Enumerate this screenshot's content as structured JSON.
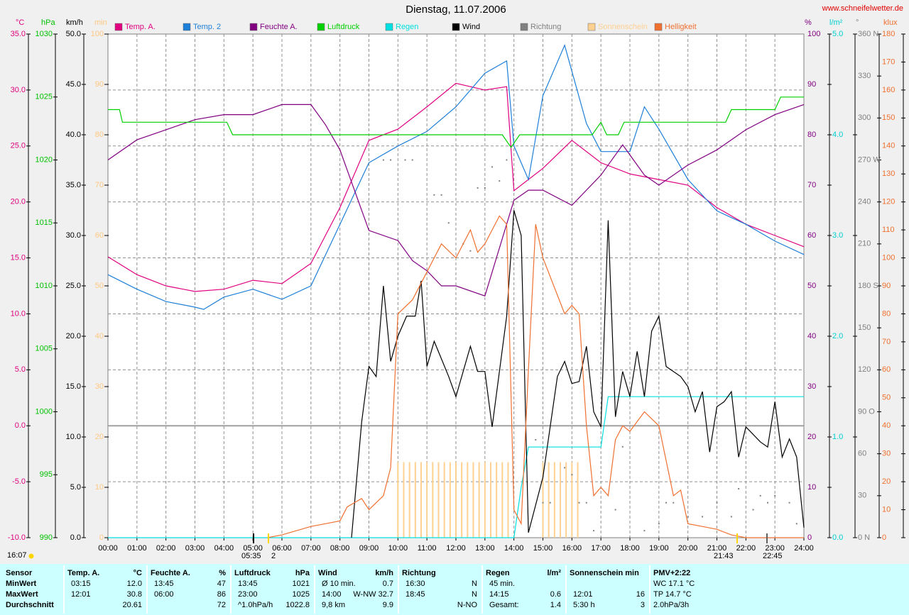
{
  "chart_data": {
    "type": "line",
    "title": "Dienstag, 11.07.2006",
    "source": "www.schneifelwetter.de",
    "xlim": [
      0,
      24
    ],
    "xticks": [
      {
        "value": 0,
        "label": "00:00"
      },
      {
        "value": 1,
        "label": "01:00"
      },
      {
        "value": 2,
        "label": "02:00"
      },
      {
        "value": 3,
        "label": "03:00"
      },
      {
        "value": 4,
        "label": "04:00"
      },
      {
        "value": 5,
        "label": "05:00"
      },
      {
        "value": 6,
        "label": "06:00"
      },
      {
        "value": 7,
        "label": "07:00"
      },
      {
        "value": 8,
        "label": "08:00"
      },
      {
        "value": 9,
        "label": "09:00"
      },
      {
        "value": 10,
        "label": "10:00"
      },
      {
        "value": 11,
        "label": "11:00"
      },
      {
        "value": 12,
        "label": "12:00"
      },
      {
        "value": 13,
        "label": "13:00"
      },
      {
        "value": 14,
        "label": "14:00"
      },
      {
        "value": 15,
        "label": "15:00"
      },
      {
        "value": 16,
        "label": "16:00"
      },
      {
        "value": 17,
        "label": "17:00"
      },
      {
        "value": 18,
        "label": "18:00"
      },
      {
        "value": 19,
        "label": "19:00"
      },
      {
        "value": 20,
        "label": "20:00"
      },
      {
        "value": 21,
        "label": "21:00"
      },
      {
        "value": 22,
        "label": "22:00"
      },
      {
        "value": 23,
        "label": "23:00"
      },
      {
        "value": 24,
        "label": "24:00"
      }
    ],
    "grid": true,
    "grid_axis": "°C",
    "axes": [
      {
        "unit": "°C",
        "side": "left",
        "color": "#e0007f",
        "ylim": [
          -10,
          35
        ],
        "yticks": [
          {
            "value": -10,
            "label": "-10.0"
          },
          {
            "value": -5,
            "label": "-5.0"
          },
          {
            "value": 0,
            "label": "0.0"
          },
          {
            "value": 5,
            "label": "5.0"
          },
          {
            "value": 10,
            "label": "10.0"
          },
          {
            "value": 15,
            "label": "15.0"
          },
          {
            "value": 20,
            "label": "20.0"
          },
          {
            "value": 25,
            "label": "25.0"
          },
          {
            "value": 30,
            "label": "30.0"
          },
          {
            "value": 35,
            "label": "35.0"
          }
        ]
      },
      {
        "unit": "hPa",
        "side": "left",
        "color": "#00c000",
        "ylim": [
          990,
          1030
        ],
        "yticks": [
          990,
          995,
          1000,
          1005,
          1010,
          1015,
          1020,
          1025,
          1030
        ]
      },
      {
        "unit": "km/h",
        "side": "left",
        "color": "#000000",
        "ylim": [
          0,
          50
        ],
        "yticks": [
          {
            "value": 0,
            "label": "0.0"
          },
          {
            "value": 5,
            "label": "5.0"
          },
          {
            "value": 10,
            "label": "10.0"
          },
          {
            "value": 15,
            "label": "15.0"
          },
          {
            "value": 20,
            "label": "20.0"
          },
          {
            "value": 25,
            "label": "25.0"
          },
          {
            "value": 30,
            "label": "30.0"
          },
          {
            "value": 35,
            "label": "35.0"
          },
          {
            "value": 40,
            "label": "40.0"
          },
          {
            "value": 45,
            "label": "45.0"
          },
          {
            "value": 50,
            "label": "50.0"
          }
        ]
      },
      {
        "unit": "min",
        "side": "left",
        "color": "#ffc880",
        "ylim": [
          0,
          100
        ],
        "yticks": [
          0,
          10,
          20,
          30,
          40,
          50,
          60,
          70,
          80,
          90,
          100
        ]
      },
      {
        "unit": "%",
        "side": "right",
        "color": "#800080",
        "ylim": [
          0,
          100
        ],
        "yticks": [
          0,
          10,
          20,
          30,
          40,
          50,
          60,
          70,
          80,
          90,
          100
        ]
      },
      {
        "unit": "l/m²",
        "side": "right",
        "color": "#00d0d0",
        "ylim": [
          0,
          5
        ],
        "yticks": [
          {
            "value": 0,
            "label": "0.0"
          },
          {
            "value": 1,
            "label": "1.0"
          },
          {
            "value": 2,
            "label": "2.0"
          },
          {
            "value": 3,
            "label": "3.0"
          },
          {
            "value": 4,
            "label": "4.0"
          },
          {
            "value": 5,
            "label": "5.0"
          }
        ]
      },
      {
        "unit": "°",
        "side": "right",
        "color": "#808080",
        "ylim": [
          0,
          360
        ],
        "yticks": [
          {
            "value": 0,
            "label": "0 N"
          },
          30,
          60,
          {
            "value": 90,
            "label": "90 O"
          },
          120,
          150,
          {
            "value": 180,
            "label": "180 S"
          },
          210,
          240,
          {
            "value": 270,
            "label": "270 W"
          },
          300,
          330,
          {
            "value": 360,
            "label": "360 N"
          }
        ]
      },
      {
        "unit": "klux",
        "side": "right",
        "color": "#f07030",
        "ylim": [
          0,
          180
        ],
        "yticks": [
          0,
          10,
          20,
          30,
          40,
          50,
          60,
          70,
          80,
          90,
          100,
          110,
          120,
          130,
          140,
          150,
          160,
          170,
          180
        ]
      }
    ],
    "series": [
      {
        "name": "Temp. A.",
        "color": "#e0007f",
        "axis": "°C",
        "kind": "line",
        "x": [
          0,
          1,
          2,
          3,
          4,
          5,
          6,
          7,
          8,
          9,
          10,
          11,
          12,
          13,
          13.75,
          14,
          15,
          16,
          17,
          18,
          19,
          20,
          21,
          22,
          23,
          24
        ],
        "values": [
          15.1,
          13.5,
          12.5,
          12.0,
          12.2,
          13.0,
          12.7,
          14.5,
          19.5,
          25.5,
          26.5,
          28.5,
          30.6,
          30.0,
          30.3,
          21.0,
          23.0,
          25.5,
          23.5,
          22.5,
          22.0,
          21.5,
          19.5,
          18.0,
          17.0,
          16.0
        ]
      },
      {
        "name": "Temp. 2",
        "color": "#1e7fd8",
        "axis": "°C",
        "kind": "line",
        "x": [
          0,
          1,
          2,
          3,
          3.3,
          4,
          5,
          6,
          7,
          8,
          9,
          10,
          11,
          12,
          13,
          13.75,
          14,
          14.5,
          15,
          15.75,
          16.5,
          17,
          17.5,
          18,
          18.5,
          19,
          20,
          21,
          22,
          23,
          24
        ],
        "values": [
          13.5,
          12.2,
          11.1,
          10.6,
          10.4,
          11.5,
          12.2,
          11.3,
          12.5,
          18.0,
          23.5,
          25.0,
          26.3,
          28.5,
          31.5,
          32.6,
          25.0,
          22.0,
          29.5,
          34.0,
          27.0,
          24.5,
          24.5,
          24.5,
          28.5,
          26.5,
          22.0,
          19.2,
          18.0,
          16.5,
          15.3
        ]
      },
      {
        "name": "Feuchte A.",
        "color": "#800080",
        "axis": "%",
        "kind": "line",
        "x": [
          0,
          1,
          2,
          3,
          4,
          5,
          6,
          7,
          7.5,
          8,
          8.5,
          9,
          10,
          10.5,
          11,
          11.5,
          12,
          13,
          14,
          14.5,
          15,
          16,
          17,
          17.75,
          18.5,
          19,
          20,
          21,
          22,
          23,
          24
        ],
        "values": [
          75,
          79,
          81,
          83,
          84,
          84,
          86,
          86,
          82,
          77,
          69,
          61,
          59,
          55,
          53,
          50,
          50,
          48,
          67,
          69,
          69,
          66,
          72,
          78,
          72,
          70,
          74,
          77,
          81,
          84,
          86
        ]
      },
      {
        "name": "Luftdruck",
        "color": "#00d000",
        "axis": "hPa",
        "kind": "line",
        "x": [
          0,
          0.4,
          0.5,
          4.1,
          4.3,
          13.6,
          13.9,
          14.2,
          16.7,
          17.0,
          17.2,
          17.6,
          17.8,
          21.3,
          21.5,
          23.0,
          23.2,
          24
        ],
        "values": [
          1024,
          1024,
          1023,
          1023,
          1022,
          1022,
          1021,
          1022,
          1022,
          1023,
          1022,
          1022,
          1023,
          1023,
          1024,
          1024,
          1025,
          1025
        ]
      },
      {
        "name": "Regen",
        "color": "#00e0e0",
        "axis": "l/m²",
        "kind": "line",
        "x": [
          0,
          14,
          14.25,
          14.5,
          17,
          17.25,
          24
        ],
        "values": [
          0,
          0,
          0.5,
          0.9,
          0.9,
          1.4,
          1.4
        ]
      },
      {
        "name": "Wind",
        "color": "#000000",
        "axis": "km/h",
        "kind": "line",
        "x": [
          8.4,
          8.75,
          9,
          9.25,
          9.5,
          9.75,
          10,
          10.3,
          10.6,
          10.8,
          11,
          11.25,
          11.75,
          12,
          12.5,
          12.75,
          13,
          13.25,
          13.75,
          14,
          14.25,
          14.5,
          15,
          15.5,
          15.75,
          16,
          16.25,
          16.5,
          16.75,
          17,
          17.25,
          17.5,
          17.75,
          18,
          18.25,
          18.5,
          18.75,
          19,
          19.25,
          19.75,
          20,
          20.25,
          20.5,
          20.75,
          21,
          21.25,
          21.5,
          21.75,
          22,
          22.5,
          22.75,
          23,
          23.25,
          23.5,
          23.75,
          24
        ],
        "values": [
          0,
          11.5,
          17,
          16,
          25,
          17.5,
          20,
          22,
          22,
          25.5,
          17,
          19.5,
          16,
          14,
          19,
          16.5,
          16.5,
          11,
          22,
          32.5,
          30,
          0.5,
          6,
          16,
          17.5,
          15.3,
          15.5,
          19,
          12.5,
          11,
          31.5,
          12,
          16.5,
          14,
          18.5,
          14,
          20.5,
          22,
          17,
          16,
          15,
          12.5,
          14.5,
          8.5,
          13,
          13.5,
          14.5,
          8,
          11,
          9.5,
          9,
          13.5,
          8,
          9.8,
          8,
          1
        ]
      },
      {
        "name": "Richtung",
        "color": "#808080",
        "axis": "°",
        "kind": "dots",
        "x": [
          9.5,
          9.75,
          10.25,
          10.5,
          11.25,
          11.5,
          11.75,
          12.25,
          12.5,
          12.75,
          13,
          13.25,
          13.5,
          13.75,
          14.75,
          15,
          15.25,
          15.75,
          16,
          16.25,
          16.5,
          16.75,
          17.5,
          17.75,
          18.5,
          19,
          19.25,
          19.5,
          20,
          20.5,
          21,
          21.5,
          21.75,
          22.25,
          22.5,
          22.75,
          23,
          23.5,
          23.75
        ],
        "values": [
          270,
          270,
          270,
          270,
          245,
          245,
          225,
          210,
          205,
          250,
          250,
          265,
          255,
          270,
          70,
          25,
          25,
          50,
          45,
          25,
          25,
          5,
          20,
          65,
          5,
          10,
          25,
          25,
          15,
          15,
          25,
          15,
          35,
          20,
          30,
          25,
          30,
          25,
          10
        ]
      },
      {
        "name": "Sonnenschein",
        "color": "#ffd090",
        "axis": "min",
        "kind": "bars",
        "x": [
          10.0,
          10.2,
          10.4,
          10.6,
          10.8,
          11.0,
          11.2,
          11.4,
          11.6,
          11.8,
          12.0,
          12.2,
          12.4,
          12.6,
          12.8,
          13.0,
          13.2,
          13.4,
          13.6,
          13.8,
          15.0,
          15.2,
          15.4,
          15.6,
          15.8,
          16.0,
          16.2
        ],
        "values": [
          15,
          15,
          15,
          15,
          15,
          15,
          15,
          15,
          15,
          15,
          15,
          15,
          15,
          15,
          15,
          15,
          15,
          15,
          15,
          15,
          15,
          15,
          15,
          15,
          15,
          15,
          15
        ]
      },
      {
        "name": "Helligkeit",
        "color": "#f07030",
        "axis": "klux",
        "kind": "line",
        "x": [
          5.5,
          6,
          7,
          7.5,
          8,
          8.25,
          8.75,
          9,
          9.5,
          9.75,
          10,
          10.5,
          11,
          11.5,
          12,
          12.25,
          12.5,
          12.75,
          13,
          13.5,
          13.75,
          14,
          14.25,
          14.5,
          14.75,
          15,
          15.75,
          16,
          16.25,
          16.5,
          16.75,
          17,
          17.25,
          17.5,
          17.75,
          18,
          18.5,
          19,
          19.5,
          19.75,
          20,
          20.5,
          21,
          21.5,
          22,
          24
        ],
        "values": [
          0,
          1,
          4,
          5,
          6,
          11,
          14,
          10,
          15,
          25,
          80,
          85,
          95,
          105,
          100,
          105,
          110,
          102,
          105,
          115,
          112,
          10,
          5,
          60,
          112,
          100,
          80,
          83,
          80,
          40,
          15,
          18,
          15,
          35,
          40,
          38,
          45,
          40,
          15,
          17,
          5,
          4,
          3,
          1,
          0,
          0
        ]
      }
    ],
    "notes": [
      "16:07",
      "05:35",
      "2",
      "21:43",
      "22:45"
    ]
  },
  "summary": {
    "corner": "Sensor",
    "columns": [
      {
        "name": "Temp. A.",
        "unit": "°C"
      },
      {
        "name": "Feuchte A.",
        "unit": "%"
      },
      {
        "name": "Luftdruck",
        "unit": "hPa"
      },
      {
        "name": "Wind",
        "unit": "km/h"
      },
      {
        "name": "Richtung"
      },
      {
        "name": "Regen",
        "unit": "l/m²"
      },
      {
        "name": "Sonnenschein min"
      },
      {
        "name": "PMV+2:22"
      }
    ],
    "rows": [
      {
        "label": "MinWert",
        "cells": [
          [
            "03:15",
            "12.0"
          ],
          [
            "13:45",
            "47"
          ],
          [
            "13:45",
            "1021"
          ],
          [
            "Ø 10 min.",
            "0.7"
          ],
          [
            "16:30",
            "N"
          ],
          [
            "45 min."
          ],
          [],
          [
            "WC 17.1 °C"
          ]
        ]
      },
      {
        "label": "MaxWert",
        "cells": [
          [
            "12:01",
            "30.8"
          ],
          [
            "06:00",
            "86"
          ],
          [
            "23:00",
            "1025"
          ],
          [
            "14:00",
            "W-NW 32.7"
          ],
          [
            "18:45",
            "N"
          ],
          [
            "14:15",
            "0.6"
          ],
          [
            "12:01",
            "16"
          ],
          [
            "TP 14.7 °C"
          ]
        ]
      },
      {
        "label": "Durchschnitt",
        "cells": [
          [
            null,
            "20.61"
          ],
          [
            null,
            "72"
          ],
          [
            "^1.0hPa/h",
            "1022.8"
          ],
          [
            "9,8 km",
            "9.9"
          ],
          [
            null,
            "N-NO"
          ],
          [
            "Gesamt:",
            "1.4"
          ],
          [
            "5:30 h",
            "3"
          ],
          [
            "2.0hPa/3h"
          ]
        ]
      }
    ]
  }
}
